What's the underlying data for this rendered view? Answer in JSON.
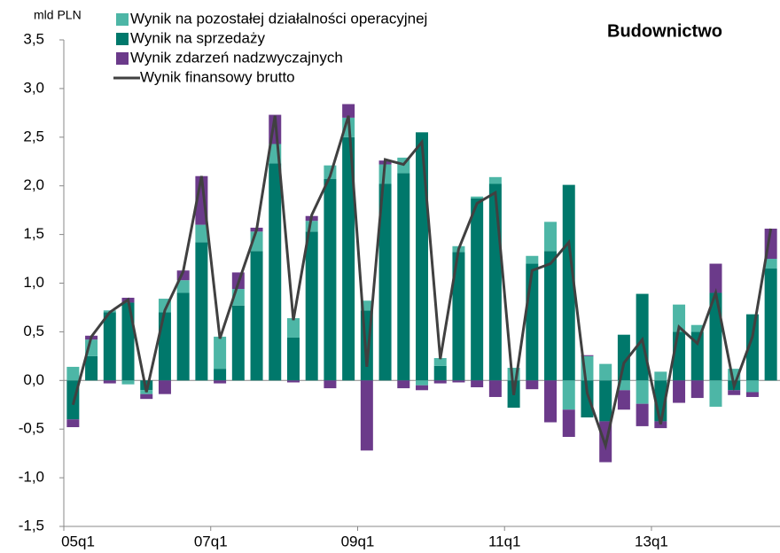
{
  "chart_data": {
    "type": "stacked_bar_line",
    "title": "Budownictwo",
    "y_label": "mld PLN",
    "categories": [
      "05q1",
      null,
      null,
      null,
      null,
      null,
      null,
      null,
      "07q1",
      null,
      null,
      null,
      null,
      null,
      null,
      null,
      "09q1",
      null,
      null,
      null,
      null,
      null,
      null,
      null,
      "11q1",
      null,
      null,
      null,
      null,
      null,
      null,
      null,
      "13q1",
      null,
      null,
      null,
      null,
      null,
      null
    ],
    "series": [
      {
        "name": "Wynik na pozostałej działalności operacyjnej",
        "kind": "bar",
        "color": "#4db6a6",
        "values": [
          0.14,
          0.17,
          0.02,
          -0.04,
          -0.04,
          0.14,
          0.13,
          0.18,
          0.33,
          0.17,
          0.2,
          0.2,
          0.2,
          0.11,
          0.14,
          0.2,
          0.1,
          0.2,
          0.16,
          -0.05,
          0.08,
          0.06,
          0.02,
          0.07,
          0.13,
          0.08,
          0.3,
          -0.3,
          0.25,
          0.17,
          -0.1,
          -0.24,
          0.09,
          0.28,
          0.07,
          -0.27,
          0.12,
          -0.12,
          0.1
        ]
      },
      {
        "name": "Wynik na sprzedaży",
        "kind": "bar",
        "color": "#00786b",
        "values": [
          -0.4,
          0.25,
          0.7,
          0.8,
          -0.1,
          0.7,
          0.9,
          1.42,
          0.12,
          0.77,
          1.33,
          2.23,
          0.44,
          1.53,
          2.07,
          2.5,
          0.72,
          2.02,
          2.13,
          2.55,
          0.15,
          1.32,
          1.87,
          2.02,
          -0.28,
          1.2,
          1.33,
          2.01,
          -0.38,
          -0.42,
          0.47,
          0.89,
          -0.42,
          0.5,
          0.5,
          0.9,
          -0.1,
          0.68,
          1.15
        ]
      },
      {
        "name": "Wynik zdarzeń nadzwyczajnych",
        "kind": "bar",
        "color": "#6b3a8a",
        "values": [
          -0.08,
          0.04,
          -0.03,
          0.05,
          -0.05,
          -0.14,
          0.1,
          0.5,
          -0.03,
          0.17,
          0.04,
          0.3,
          -0.02,
          0.05,
          -0.08,
          0.14,
          -0.72,
          0.04,
          -0.08,
          -0.05,
          -0.03,
          -0.02,
          -0.07,
          -0.17,
          0,
          -0.09,
          -0.43,
          -0.28,
          0.01,
          -0.42,
          -0.2,
          -0.23,
          -0.07,
          -0.23,
          -0.18,
          0.3,
          -0.05,
          -0.05,
          0.31
        ]
      },
      {
        "name": "Wynik finansowy brutto",
        "kind": "line",
        "color": "#404040",
        "values": [
          -0.25,
          0.45,
          0.7,
          0.83,
          -0.12,
          0.72,
          1.12,
          2.1,
          0.43,
          1.0,
          1.55,
          2.72,
          0.62,
          1.7,
          2.1,
          2.72,
          0.14,
          2.27,
          2.22,
          2.45,
          0.22,
          1.35,
          1.82,
          1.93,
          -0.15,
          1.13,
          1.2,
          1.42,
          -0.13,
          -0.67,
          0.18,
          0.42,
          -0.45,
          0.55,
          0.38,
          0.9,
          -0.06,
          0.45,
          1.56
        ]
      }
    ],
    "ylim": [
      -1.5,
      3.5
    ],
    "yticks": [
      {
        "value": -1.5,
        "label": "-1,5"
      },
      {
        "value": -1,
        "label": "-1,0"
      },
      {
        "value": -0.5,
        "label": "-0,5"
      },
      {
        "value": 0,
        "label": "0,0"
      },
      {
        "value": 0.5,
        "label": "0,5"
      },
      {
        "value": 1,
        "label": "1,0"
      },
      {
        "value": 1.5,
        "label": "1,5"
      },
      {
        "value": 2,
        "label": "2,0"
      },
      {
        "value": 2.5,
        "label": "2,5"
      },
      {
        "value": 3,
        "label": "3,0"
      },
      {
        "value": 3.5,
        "label": "3,5"
      }
    ]
  }
}
